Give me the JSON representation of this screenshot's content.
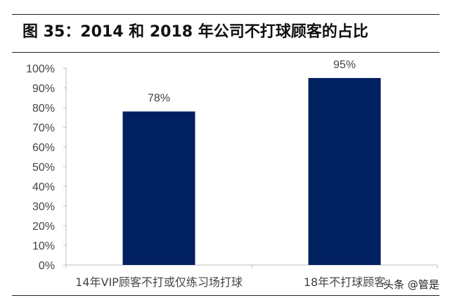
{
  "chart_data": {
    "type": "bar",
    "title": "图 35：2014 和 2018 年公司不打球顾客的占比",
    "categories": [
      "14年VIP顾客不打或仅练习场打球",
      "18年不打球顾客"
    ],
    "values": [
      78,
      95
    ],
    "data_labels": [
      "78%",
      "95%"
    ],
    "ylim": [
      0,
      100
    ],
    "yticks": [
      "0%",
      "10%",
      "20%",
      "30%",
      "40%",
      "50%",
      "60%",
      "70%",
      "80%",
      "90%",
      "100%"
    ],
    "bar_color": "#002060",
    "grid": false,
    "legend": "none"
  },
  "watermark": "头条 @管是"
}
